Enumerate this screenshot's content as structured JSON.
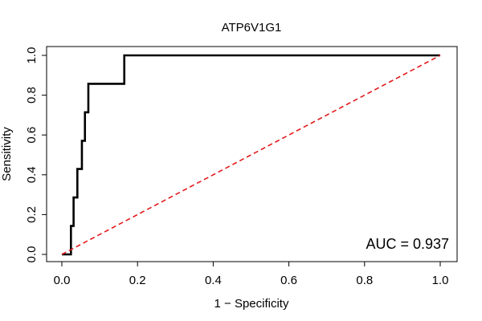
{
  "chart_data": {
    "type": "line",
    "title": "ATP6V1G1",
    "xlabel": "1 − Specificity",
    "ylabel": "Sensitivity",
    "xlim": [
      0,
      1
    ],
    "ylim": [
      0,
      1
    ],
    "x_ticks": [
      "0.0",
      "0.2",
      "0.4",
      "0.6",
      "0.8",
      "1.0"
    ],
    "y_ticks": [
      "0.0",
      "0.2",
      "0.4",
      "0.6",
      "0.8",
      "1.0"
    ],
    "grid": false,
    "annotation": "AUC = 0.937",
    "series": [
      {
        "color": "#000000",
        "points": [
          [
            0.0,
            0.0
          ],
          [
            0.024,
            0.0
          ],
          [
            0.024,
            0.143
          ],
          [
            0.031,
            0.143
          ],
          [
            0.031,
            0.286
          ],
          [
            0.041,
            0.286
          ],
          [
            0.041,
            0.429
          ],
          [
            0.053,
            0.429
          ],
          [
            0.053,
            0.571
          ],
          [
            0.061,
            0.571
          ],
          [
            0.061,
            0.714
          ],
          [
            0.07,
            0.714
          ],
          [
            0.07,
            0.857
          ],
          [
            0.111,
            0.857
          ],
          [
            0.165,
            0.857
          ],
          [
            0.165,
            1.0
          ],
          [
            1.0,
            1.0
          ]
        ]
      },
      {
        "color": "#e31a1c",
        "style": "dashed",
        "points": [
          [
            0.0,
            0.0
          ],
          [
            1.0,
            1.0
          ]
        ]
      }
    ]
  }
}
